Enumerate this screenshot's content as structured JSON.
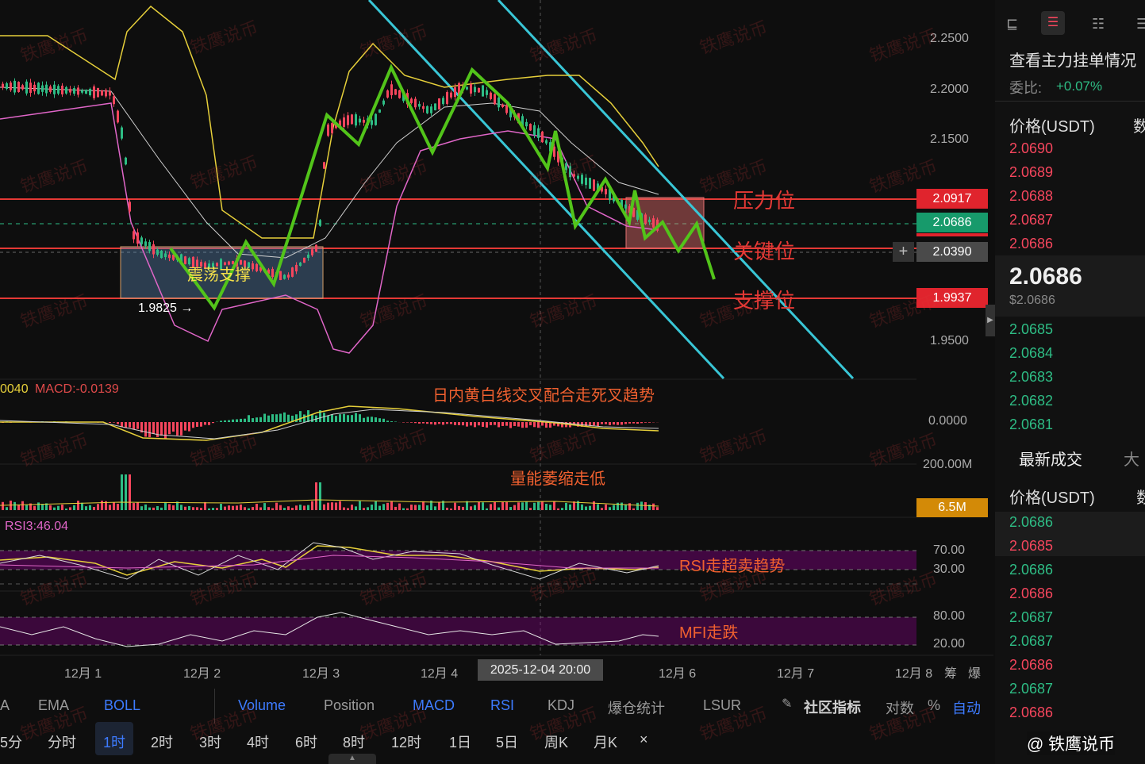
{
  "price_axis": [
    "2.2500",
    "2.2000",
    "2.1500",
    "1.9500"
  ],
  "price_tags": {
    "pressure": "2.0917",
    "last": "2.0686",
    "cross": "2.0390",
    "support": "1.9937"
  },
  "annotations": {
    "pressure": "压力位",
    "key": "关键位",
    "support": "支撑位",
    "range": "震荡支撑",
    "low_label": "1.9825 →",
    "macd_note": "日内黄白线交叉配合走死叉趋势",
    "vol_note": "量能萎缩走低",
    "rsi_note": "RSI走超卖趋势",
    "mfi_note": "MFI走跌"
  },
  "macd": {
    "left_val": "0040",
    "label": "MACD:-0.0139",
    "axis": "0.0000"
  },
  "volume": {
    "axis": "200.00M",
    "tag": "6.5M"
  },
  "rsi": {
    "label": "RSI3:46.04",
    "hi": "70.00",
    "lo": "30.00"
  },
  "mfi": {
    "hi": "80.00",
    "lo": "20.00"
  },
  "dates": [
    "12月 1",
    "12月 2",
    "12月 3",
    "12月 4",
    "12月 6",
    "12月 7",
    "12月 8"
  ],
  "crosshair_date": "2025-12-04 20:00",
  "date_extra": [
    "筹",
    "爆"
  ],
  "indicators": {
    "items": [
      "A",
      "EMA",
      "BOLL",
      "Volume",
      "Position",
      "MACD",
      "RSI",
      "KDJ",
      "爆仓统计",
      "LSUR"
    ],
    "community": "社区指标",
    "log": "对数",
    "pct": "%",
    "auto": "自动"
  },
  "intervals": [
    "5分",
    "分时",
    "1时",
    "2时",
    "3时",
    "4时",
    "6时",
    "8时",
    "12时",
    "1日",
    "5日",
    "周K",
    "月K"
  ],
  "active_interval": "1时",
  "close_x": "×",
  "panel": {
    "title": "查看主力挂单情况",
    "ratio_label": "委比:",
    "ratio_value": "+0.07%",
    "price_header": "价格(USDT)",
    "qty_header": "数",
    "asks": [
      "2.0690",
      "2.0689",
      "2.0688",
      "2.0687",
      "2.0686"
    ],
    "last_price": "2.0686",
    "last_usd": "$2.0686",
    "bids": [
      "2.0685",
      "2.0684",
      "2.0683",
      "2.0682",
      "2.0681"
    ],
    "trades_tab": "最新成交",
    "big_tab": "大",
    "trades": [
      {
        "p": "2.0686",
        "s": "up"
      },
      {
        "p": "2.0685",
        "s": "dn"
      },
      {
        "p": "2.0686",
        "s": "up"
      },
      {
        "p": "2.0686",
        "s": "dn"
      },
      {
        "p": "2.0687",
        "s": "up"
      },
      {
        "p": "2.0687",
        "s": "up"
      },
      {
        "p": "2.0686",
        "s": "dn"
      },
      {
        "p": "2.0687",
        "s": "up"
      },
      {
        "p": "2.0686",
        "s": "dn"
      }
    ],
    "watermark_brand": "@ 铁鹰说币"
  },
  "watermark": "铁鹰说币",
  "colors": {
    "up": "#2ebd85",
    "down": "#f6465d",
    "accent": "#3d7bff",
    "zigzag": "#52c41a",
    "channel": "#39c6d6"
  }
}
